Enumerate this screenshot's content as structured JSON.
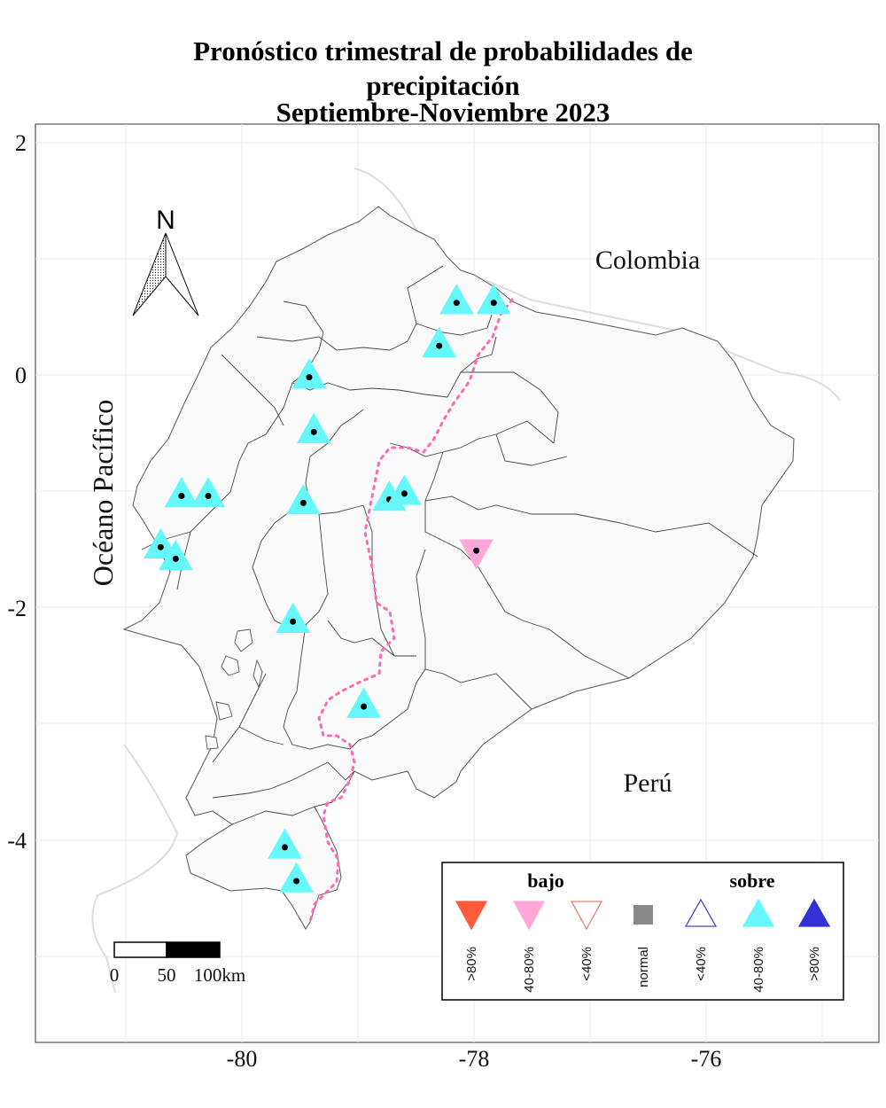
{
  "title": {
    "line1": "Pronóstico trimestral de probabilidades de",
    "line2": "precipitación",
    "line3": "Septiembre-Noviembre 2023"
  },
  "axes": {
    "x_ticks": [
      "-80",
      "-78",
      "-76"
    ],
    "y_ticks": [
      "2",
      "0",
      "-2",
      "-4"
    ]
  },
  "map_labels": {
    "ocean": "Océano Pacífico",
    "country_north": "Colombia",
    "country_south": "Perú"
  },
  "north_arrow": {
    "label": "N"
  },
  "scale_bar": {
    "labels": [
      "0",
      "50",
      "100km"
    ]
  },
  "legend": {
    "group_low": "bajo",
    "group_high": "sobre",
    "items": [
      {
        "label": ">80%",
        "shape": "triangle-down",
        "fill": "#ff5b3a",
        "stroke": "#ff5b3a"
      },
      {
        "label": "40-80%",
        "shape": "triangle-down",
        "fill": "#ffa7d6",
        "stroke": "#ffa7d6"
      },
      {
        "label": "<40%",
        "shape": "triangle-down",
        "fill": "none",
        "stroke": "#e8807a"
      },
      {
        "label": "normal",
        "shape": "square",
        "fill": "#888888",
        "stroke": "#888888"
      },
      {
        "label": "<40%",
        "shape": "triangle-up",
        "fill": "none",
        "stroke": "#4a4acb"
      },
      {
        "label": "40-80%",
        "shape": "triangle-up",
        "fill": "#66f7fa",
        "stroke": "#66f7fa"
      },
      {
        "label": ">80%",
        "shape": "triangle-up",
        "fill": "#3131d4",
        "stroke": "#3131d4"
      }
    ]
  },
  "stations": [
    {
      "lon": -78.15,
      "lat": 0.62,
      "category": "sobre 40-80%"
    },
    {
      "lon": -77.83,
      "lat": 0.62,
      "category": "sobre 40-80%"
    },
    {
      "lon": -78.3,
      "lat": 0.25,
      "category": "sobre 40-80%"
    },
    {
      "lon": -79.42,
      "lat": -0.02,
      "category": "sobre 40-80%"
    },
    {
      "lon": -79.38,
      "lat": -0.49,
      "category": "sobre 40-80%"
    },
    {
      "lon": -80.52,
      "lat": -1.04,
      "category": "sobre 40-80%"
    },
    {
      "lon": -80.29,
      "lat": -1.04,
      "category": "sobre 40-80%"
    },
    {
      "lon": -79.47,
      "lat": -1.1,
      "category": "sobre 40-80%"
    },
    {
      "lon": -78.73,
      "lat": -1.07,
      "category": "sobre 40-80%"
    },
    {
      "lon": -78.6,
      "lat": -1.02,
      "category": "sobre 40-80%"
    },
    {
      "lon": -80.7,
      "lat": -1.48,
      "category": "sobre 40-80%"
    },
    {
      "lon": -80.57,
      "lat": -1.58,
      "category": "sobre 40-80%"
    },
    {
      "lon": -77.98,
      "lat": -1.51,
      "category": "bajo 40-80%"
    },
    {
      "lon": -79.56,
      "lat": -2.12,
      "category": "sobre 40-80%"
    },
    {
      "lon": -78.95,
      "lat": -2.85,
      "category": "sobre 40-80%"
    },
    {
      "lon": -79.63,
      "lat": -4.06,
      "category": "sobre 40-80%"
    },
    {
      "lon": -79.53,
      "lat": -4.35,
      "category": "sobre 40-80%"
    }
  ]
}
